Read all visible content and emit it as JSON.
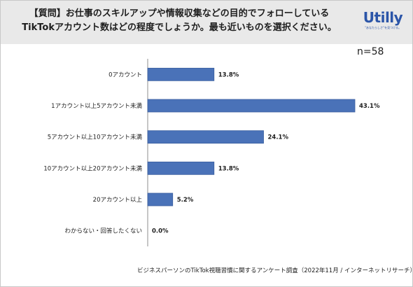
{
  "header": {
    "question_line1": "【質問】お仕事のスキルアップや情報収集などの目的でフォローしている",
    "question_line2": "TikTokアカウント数はどの程度でしょうか。最も近いものを選択ください。"
  },
  "logo": {
    "word": "Utilly",
    "sub": "“あなたらしさ”を見つける。"
  },
  "sample_size": "n=58",
  "source_note": "ビジネスパーソンのTikTok視聴習慣に関するアンケート調査（2022年11月 / インターネットリサーチ）",
  "colors": {
    "bar": "#4a72b8",
    "bar_stroke": "#3a5e9e",
    "header_bg": "#e9e9e9",
    "axis": "#8c8c8c",
    "logo": "#2b55a8"
  },
  "chart_data": {
    "type": "bar",
    "orientation": "horizontal",
    "categories": [
      "0アカウント",
      "1アカウント以上5アカウント未満",
      "5アカウント以上10アカウント未満",
      "10アカウント以上20アカウント未満",
      "20アカウント以上",
      "わからない・回答したくない"
    ],
    "values": [
      13.8,
      43.1,
      24.1,
      13.8,
      5.2,
      0.0
    ],
    "value_labels": [
      "13.8%",
      "43.1%",
      "24.1%",
      "13.8%",
      "5.2%",
      "0.0%"
    ],
    "xlim": [
      0,
      45
    ],
    "grid": false
  }
}
